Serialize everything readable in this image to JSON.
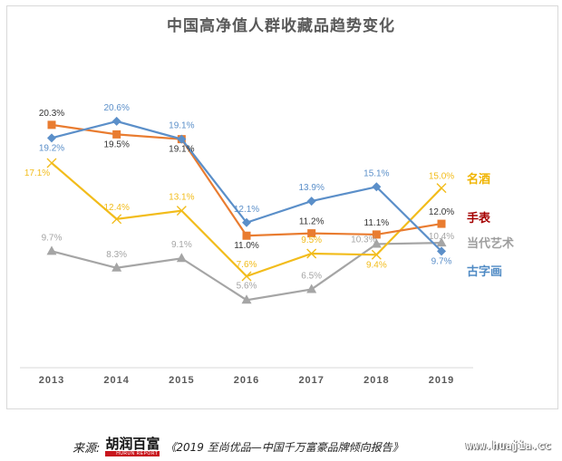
{
  "chart_data": {
    "type": "line",
    "title": "中国高净值人群收藏品趋势变化",
    "xlabel": "",
    "ylabel": "",
    "categories": [
      "2013",
      "2014",
      "2015",
      "2016",
      "2017",
      "2018",
      "2019"
    ],
    "ylim": [
      0,
      22
    ],
    "grid": false,
    "legend_position": "right",
    "series": [
      {
        "name": "古字画",
        "color": "#5B8FC9",
        "label_color": "#5B8FC9",
        "marker": "diamond",
        "values": [
          19.2,
          20.6,
          19.1,
          12.1,
          13.9,
          15.1,
          9.7
        ],
        "labels": [
          "19.2%",
          "20.6%",
          "19.1%",
          "12.1%",
          "13.9%",
          "15.1%",
          "9.7%"
        ]
      },
      {
        "name": "手表",
        "color": "#E97C30",
        "label_color": "#333333",
        "marker": "square",
        "values": [
          20.3,
          19.5,
          19.1,
          11.0,
          11.2,
          11.1,
          12.0
        ],
        "labels": [
          "20.3%",
          "19.5%",
          "19.1%",
          "11.0%",
          "11.2%",
          "11.1%",
          "12.0%"
        ]
      },
      {
        "name": "名酒",
        "color": "#F2BC1B",
        "label_color": "#F2BC1B",
        "marker": "x",
        "values": [
          17.1,
          12.4,
          13.1,
          7.6,
          9.5,
          9.4,
          15.0
        ],
        "labels": [
          "17.1%",
          "12.4%",
          "13.1%",
          "7.6%",
          "9.5%",
          "9.4%",
          "15.0%"
        ]
      },
      {
        "name": "当代艺术",
        "color": "#A5A5A5",
        "label_color": "#A5A5A5",
        "marker": "triangle",
        "values": [
          9.7,
          8.3,
          9.1,
          5.6,
          6.5,
          10.3,
          10.4
        ],
        "labels": [
          "9.7%",
          "8.3%",
          "9.1%",
          "5.6%",
          "6.5%",
          "10.3%",
          "10.4%"
        ]
      }
    ],
    "legend": [
      {
        "name": "名酒",
        "color": "#F0B400"
      },
      {
        "name": "手表",
        "color": "#A50000"
      },
      {
        "name": "当代艺术",
        "color": "#9E9E9E"
      },
      {
        "name": "古字画",
        "color": "#4F8AC4"
      }
    ]
  },
  "source": {
    "prefix": "来源:",
    "logo_cn": "胡润百富",
    "logo_en": "HURUN REPORT",
    "report": "《2019 至尚优品—中国千万富豪品牌倾向报告》"
  },
  "watermark": "www.huajia.cc"
}
